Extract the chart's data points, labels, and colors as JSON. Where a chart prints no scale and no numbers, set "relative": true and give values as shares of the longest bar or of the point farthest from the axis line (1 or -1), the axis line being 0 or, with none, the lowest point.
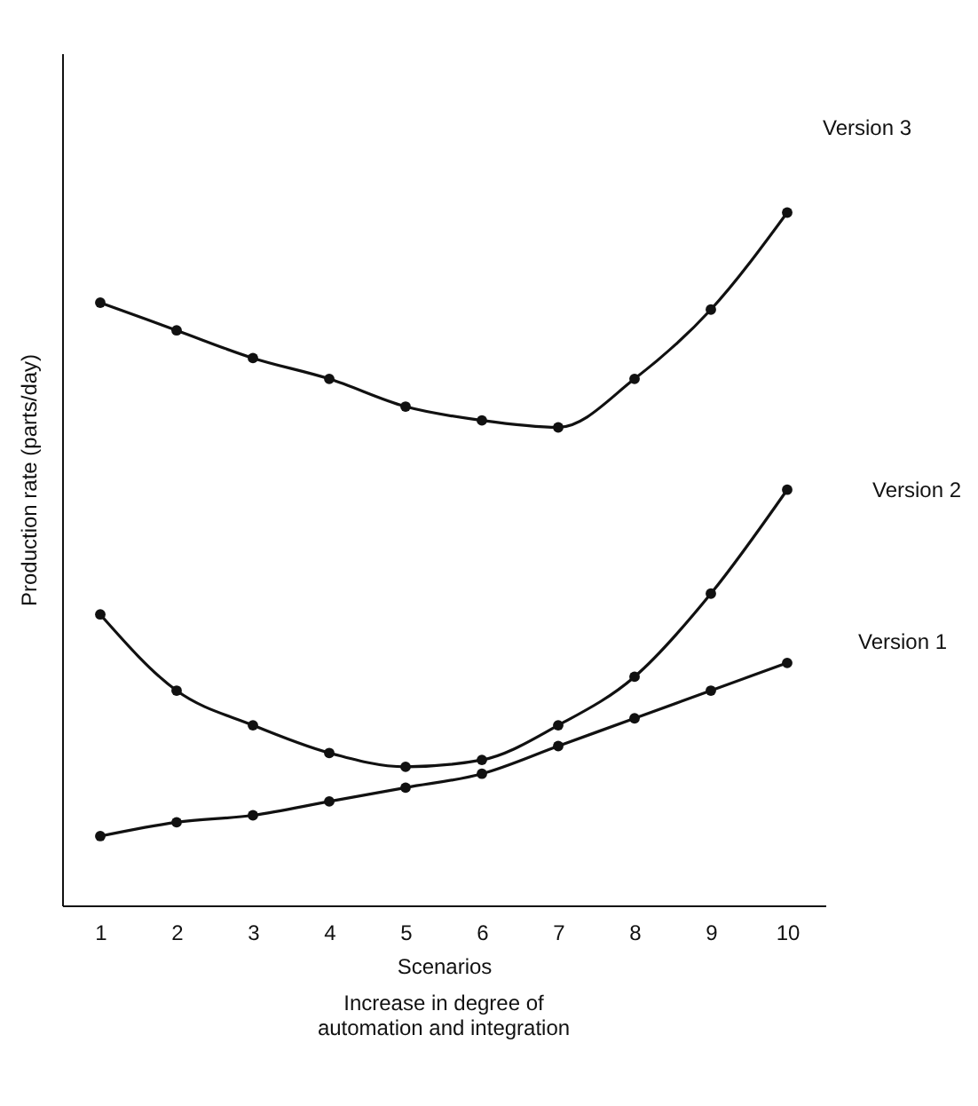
{
  "chart_data": {
    "type": "line",
    "relative": true,
    "xlabel": "Scenarios",
    "ylabel": "Production rate (parts/day)",
    "annotations": [
      "Increase in degree of automation and integration"
    ],
    "categories": [
      "1",
      "2",
      "3",
      "4",
      "5",
      "6",
      "7",
      "8",
      "9",
      "10"
    ],
    "marker": "circle",
    "line_style": "solid",
    "legend": false,
    "grid": false,
    "series": [
      {
        "name": "Version 3",
        "color": "#111111",
        "values": [
          0.87,
          0.83,
          0.79,
          0.76,
          0.72,
          0.7,
          0.69,
          0.76,
          0.86,
          1
        ]
      },
      {
        "name": "Version 2",
        "color": "#111111",
        "values": [
          0.42,
          0.31,
          0.26,
          0.22,
          0.2,
          0.21,
          0.26,
          0.33,
          0.45,
          0.6
        ]
      },
      {
        "name": "Version 1",
        "color": "#111111",
        "values": [
          0.1,
          0.12,
          0.13,
          0.15,
          0.17,
          0.19,
          0.23,
          0.27,
          0.31,
          0.35
        ]
      }
    ]
  }
}
